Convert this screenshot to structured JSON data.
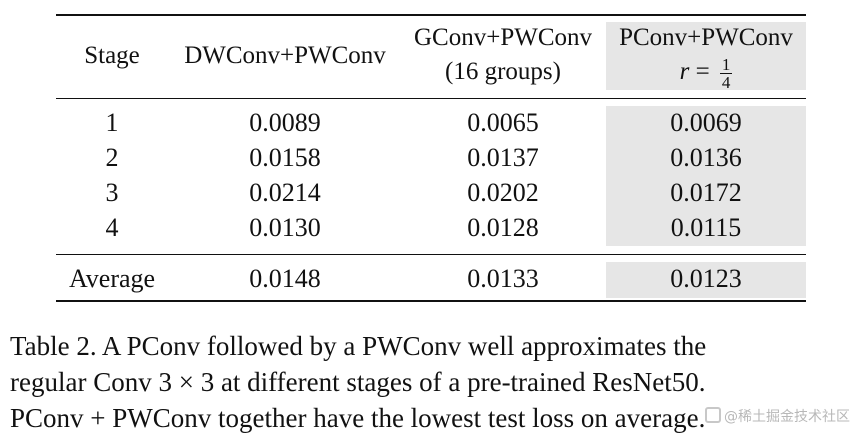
{
  "table": {
    "headers": {
      "stage": "Stage",
      "dwconv": "DWConv+PWConv",
      "gconv_line1": "GConv+PWConv",
      "gconv_line2": "(16 groups)",
      "pconv_line1": "PConv+PWConv",
      "pconv_r": "r",
      "pconv_eq": "=",
      "pconv_num": "1",
      "pconv_den": "4"
    },
    "rows": [
      {
        "stage": "1",
        "dwconv": "0.0089",
        "gconv": "0.0065",
        "pconv": "0.0069"
      },
      {
        "stage": "2",
        "dwconv": "0.0158",
        "gconv": "0.0137",
        "pconv": "0.0136"
      },
      {
        "stage": "3",
        "dwconv": "0.0214",
        "gconv": "0.0202",
        "pconv": "0.0172"
      },
      {
        "stage": "4",
        "dwconv": "0.0130",
        "gconv": "0.0128",
        "pconv": "0.0115"
      }
    ],
    "average": {
      "stage": "Average",
      "dwconv": "0.0148",
      "gconv": "0.0133",
      "pconv": "0.0123"
    },
    "highlight_color": "#e6e6e6"
  },
  "caption": {
    "line1": "Table 2.  A PConv followed by a PWConv well approximates the",
    "line2": "regular Conv 3 × 3 at different stages of a pre-trained ResNet50.",
    "line3": "PConv + PWConv together have the lowest test loss on average."
  },
  "watermark": {
    "text": "@稀土掘金技术社区"
  }
}
